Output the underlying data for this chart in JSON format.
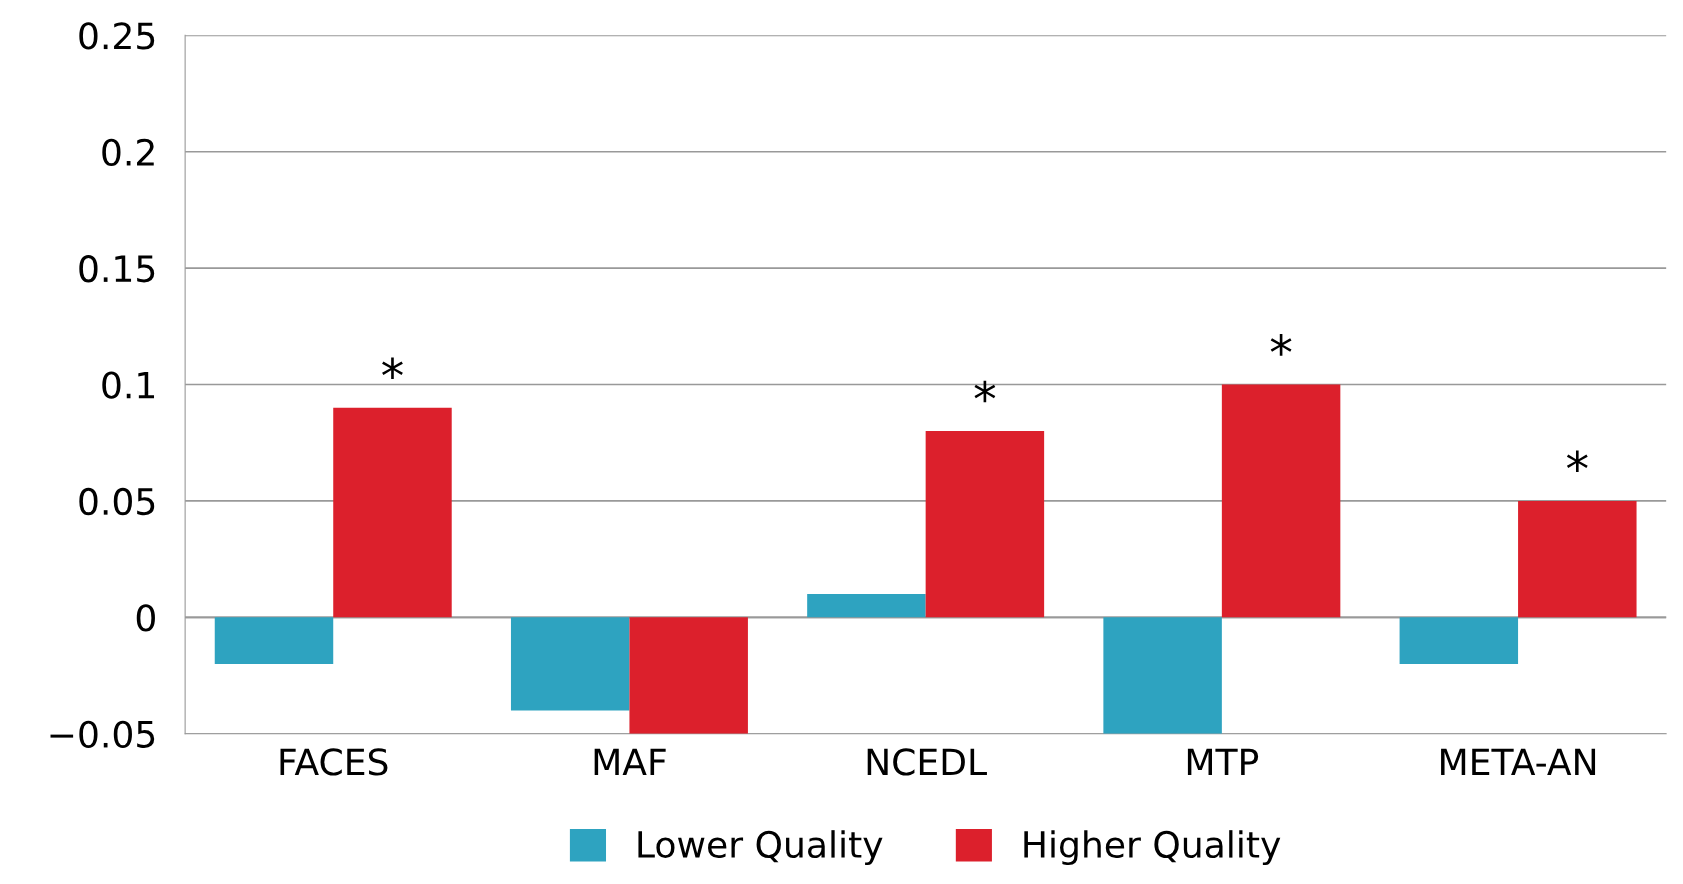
{
  "chart_data": {
    "type": "bar",
    "categories": [
      "FACES",
      "MAF",
      "NCEDL",
      "MTP",
      "META-AN"
    ],
    "series": [
      {
        "name": "Lower Quality",
        "color": "#2ea3c0",
        "values": [
          -0.02,
          -0.04,
          0.01,
          -0.05,
          -0.02
        ]
      },
      {
        "name": "Higher Quality",
        "color": "#dc202c",
        "values": [
          0.09,
          -0.05,
          0.08,
          0.1,
          0.05
        ],
        "value_labels": [
          "*",
          null,
          "*",
          "*",
          "*"
        ]
      }
    ],
    "ylim": [
      -0.05,
      0.25
    ],
    "yticks": [
      {
        "value": -0.05,
        "label": "−0.05"
      },
      0,
      0.05,
      0.1,
      0.15,
      0.2,
      0.25
    ],
    "grid": "y",
    "legend": "bottom"
  }
}
